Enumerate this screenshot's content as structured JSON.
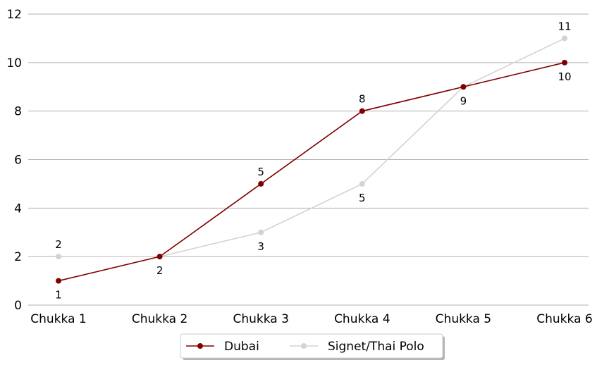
{
  "chart_data": {
    "type": "line",
    "categories": [
      "Chukka 1",
      "Chukka 2",
      "Chukka 3",
      "Chukka 4",
      "Chukka 5",
      "Chukka 6"
    ],
    "ylim": [
      0,
      12
    ],
    "yticks": [
      0,
      2,
      4,
      6,
      8,
      10,
      12
    ],
    "grid": "horizontal",
    "legend_position": "bottom-center",
    "series": [
      {
        "name": "Dubai",
        "values": [
          1,
          2,
          5,
          8,
          9,
          10
        ],
        "color": "#800000",
        "label_position": [
          "below",
          "none",
          "above",
          "above",
          "none",
          "below"
        ]
      },
      {
        "name": "Signet/Thai Polo",
        "values": [
          2,
          2,
          3,
          5,
          9,
          11
        ],
        "color": "#d3d3d3",
        "label_position": [
          "above",
          "below",
          "below",
          "below",
          "below",
          "above"
        ]
      }
    ]
  }
}
